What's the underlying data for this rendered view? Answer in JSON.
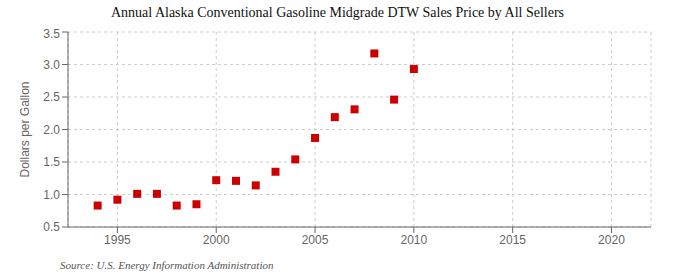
{
  "chart_data": {
    "type": "scatter",
    "title": "Annual Alaska Conventional Gasoline Midgrade DTW Sales Price by All Sellers",
    "y_label": "Dollars per Gallon",
    "annotations": [
      "Source: U.S. Energy Information Administration"
    ],
    "x": [
      1994,
      1995,
      1996,
      1997,
      1998,
      1999,
      2000,
      2001,
      2002,
      2003,
      2004,
      2005,
      2006,
      2007,
      2008,
      2009,
      2010
    ],
    "values": [
      0.83,
      0.92,
      1.01,
      1.01,
      0.83,
      0.85,
      1.22,
      1.21,
      1.14,
      1.35,
      1.54,
      1.87,
      2.19,
      2.31,
      3.17,
      2.46,
      2.93
    ],
    "color": "#cc0000",
    "marker": "square",
    "xlim": [
      1992.5,
      2022
    ],
    "ylim": [
      0.5,
      3.5
    ],
    "xticks": [
      1995,
      2000,
      2005,
      2010,
      2015,
      2020
    ],
    "yticks": [
      0.5,
      {
        "value": 1.0,
        "label": "1.0"
      },
      1.5,
      {
        "value": 2.0,
        "label": "2.0"
      },
      2.5,
      {
        "value": 3.0,
        "label": "3.0"
      },
      3.5
    ],
    "grid": true
  }
}
